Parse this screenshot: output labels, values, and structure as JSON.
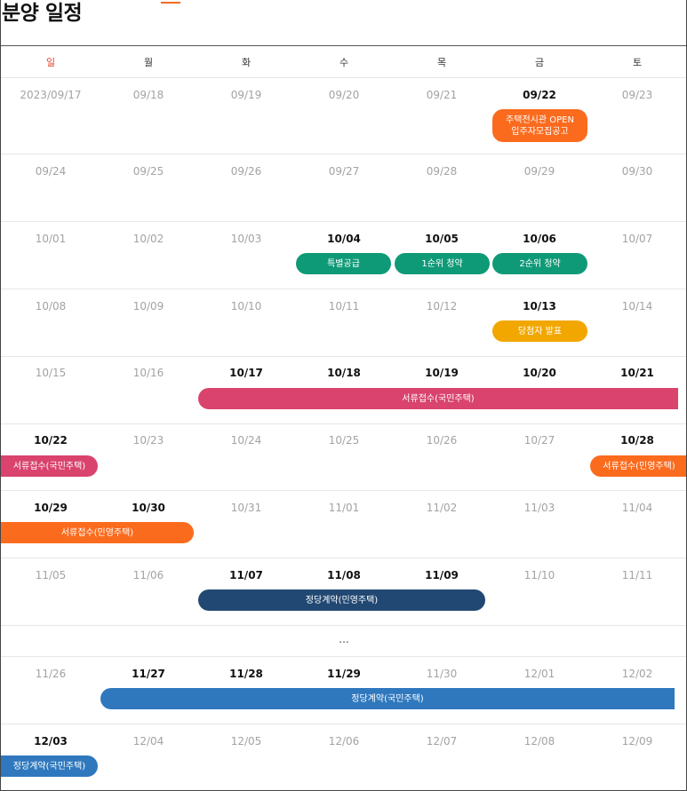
{
  "page": {
    "title": "분양 일정"
  },
  "colors": {
    "orange": "#fb6b1e",
    "teal": "#0f9a77",
    "amber": "#f2a700",
    "pink": "#d9436d",
    "navy": "#214872",
    "blue": "#2f78be"
  },
  "weekdays": [
    "일",
    "월",
    "화",
    "수",
    "목",
    "금",
    "토"
  ],
  "weeks": [
    {
      "dates": [
        "2023/09/17",
        "09/18",
        "09/19",
        "09/20",
        "09/21",
        "09/22",
        "09/23"
      ],
      "bold": [
        false,
        false,
        false,
        false,
        false,
        true,
        false
      ]
    },
    {
      "dates": [
        "09/24",
        "09/25",
        "09/26",
        "09/27",
        "09/28",
        "09/29",
        "09/30"
      ],
      "bold": [
        false,
        false,
        false,
        false,
        false,
        false,
        false
      ]
    },
    {
      "dates": [
        "10/01",
        "10/02",
        "10/03",
        "10/04",
        "10/05",
        "10/06",
        "10/07"
      ],
      "bold": [
        false,
        false,
        false,
        true,
        true,
        true,
        false
      ]
    },
    {
      "dates": [
        "10/08",
        "10/09",
        "10/10",
        "10/11",
        "10/12",
        "10/13",
        "10/14"
      ],
      "bold": [
        false,
        false,
        false,
        false,
        false,
        true,
        false
      ]
    },
    {
      "dates": [
        "10/15",
        "10/16",
        "10/17",
        "10/18",
        "10/19",
        "10/20",
        "10/21"
      ],
      "bold": [
        false,
        false,
        true,
        true,
        true,
        true,
        true
      ]
    },
    {
      "dates": [
        "10/22",
        "10/23",
        "10/24",
        "10/25",
        "10/26",
        "10/27",
        "10/28"
      ],
      "bold": [
        true,
        false,
        false,
        false,
        false,
        false,
        true
      ]
    },
    {
      "dates": [
        "10/29",
        "10/30",
        "10/31",
        "11/01",
        "11/02",
        "11/03",
        "11/04"
      ],
      "bold": [
        true,
        true,
        false,
        false,
        false,
        false,
        false
      ]
    },
    {
      "dates": [
        "11/05",
        "11/06",
        "11/07",
        "11/08",
        "11/09",
        "11/10",
        "11/11"
      ],
      "bold": [
        false,
        false,
        true,
        true,
        true,
        false,
        false
      ]
    },
    {
      "dates": [
        "11/26",
        "11/27",
        "11/28",
        "11/29",
        "11/30",
        "12/01",
        "12/02"
      ],
      "bold": [
        false,
        true,
        true,
        true,
        false,
        false,
        false
      ]
    },
    {
      "dates": [
        "12/03",
        "12/04",
        "12/05",
        "12/06",
        "12/07",
        "12/08",
        "12/09"
      ],
      "bold": [
        true,
        false,
        false,
        false,
        false,
        false,
        false
      ]
    }
  ],
  "ellipsis": "...",
  "events": {
    "showroom_open": {
      "line1": "주택전시관 OPEN",
      "line2": "입주자모집공고"
    },
    "special_supply": "특별공급",
    "first_priority": "1순위 청약",
    "second_priority": "2순위 청약",
    "winner_announce": "당첨자 발표",
    "docs_public_1": "서류접수(국민주택)",
    "docs_public_2": "서류접수(국민주택)",
    "docs_private_1": "서류접수(민영주택)",
    "docs_private_2": "서류접수(민영주택)",
    "contract_private": "정당계약(민영주택)",
    "contract_public_1": "정당계약(국민주택)",
    "contract_public_2": "정당계약(국민주택)"
  }
}
